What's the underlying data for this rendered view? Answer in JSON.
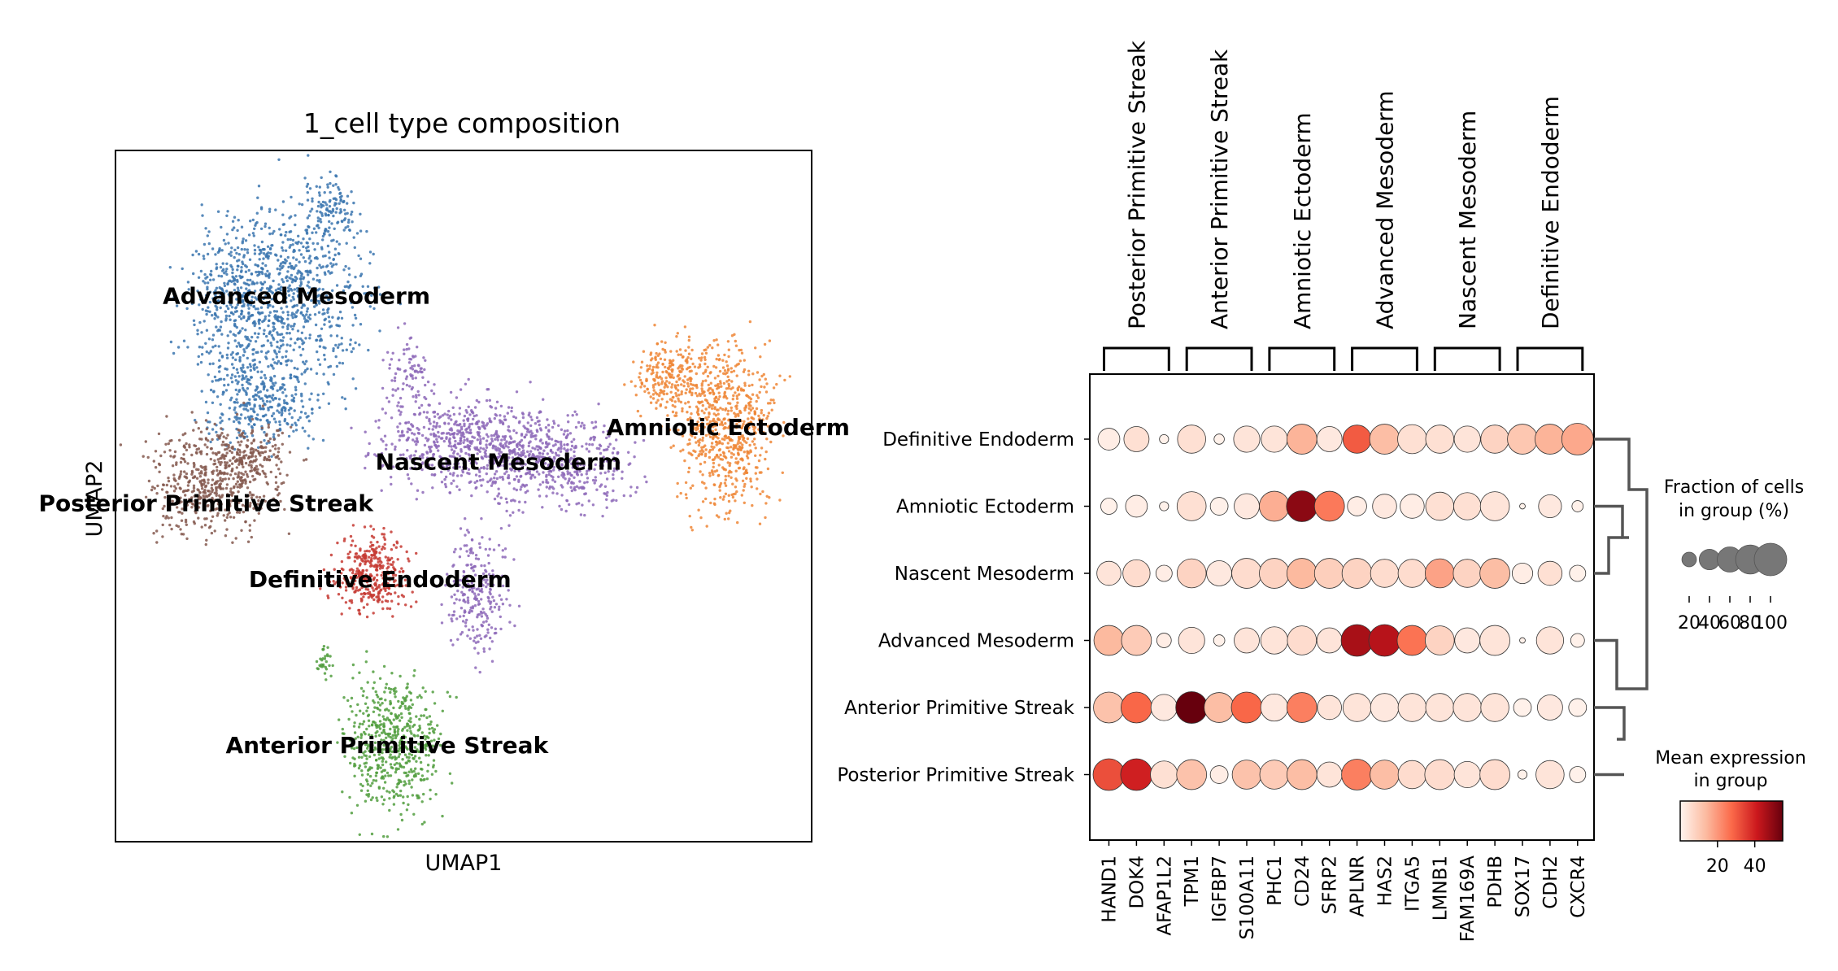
{
  "chart_data": [
    {
      "type": "scatter",
      "title": "1_cell type composition",
      "xlabel": "UMAP1",
      "ylabel": "UMAP2",
      "grid": false,
      "xlim": [
        0,
        100
      ],
      "ylim": [
        0,
        100
      ],
      "clusters": [
        {
          "name": "Advanced Mesoderm",
          "color": "#3b75af",
          "label": [
            26,
            79
          ],
          "blobs": [
            [
              18,
              78,
              7,
              10,
              500
            ],
            [
              27,
              80,
              9,
              12,
              550
            ],
            [
              21,
              64,
              8,
              6,
              350
            ],
            [
              31,
              92,
              3,
              4,
              100
            ]
          ]
        },
        {
          "name": "Nascent Mesoderm",
          "color": "#8d69b8",
          "label": [
            55,
            55
          ],
          "blobs": [
            [
              50,
              58,
              11,
              6,
              600
            ],
            [
              63,
              55,
              10,
              6,
              500
            ],
            [
              52,
              36,
              4,
              8,
              250
            ],
            [
              42,
              68,
              3,
              5,
              80
            ]
          ]
        },
        {
          "name": "Amniotic Ectoderm",
          "color": "#ef8636",
          "label": [
            88,
            60
          ],
          "blobs": [
            [
              88,
              60,
              6,
              11,
              650
            ],
            [
              80,
              67,
              5,
              5,
              250
            ]
          ]
        },
        {
          "name": "Posterior Primitive Streak",
          "color": "#84584e",
          "label": [
            13,
            49
          ],
          "blobs": [
            [
              14,
              52,
              8,
              7,
              500
            ],
            [
              20,
              56,
              5,
              4,
              150
            ]
          ]
        },
        {
          "name": "Definitive Endoderm",
          "color": "#c53a32",
          "label": [
            38,
            38
          ],
          "blobs": [
            [
              37,
              39,
              5,
              5,
              350
            ]
          ]
        },
        {
          "name": "Anterior Primitive Streak",
          "color": "#519e3e",
          "label": [
            39,
            14
          ],
          "blobs": [
            [
              40,
              14,
              6,
              9,
              550
            ],
            [
              30,
              26,
              1,
              2,
              30
            ]
          ]
        }
      ]
    },
    {
      "type": "dotplot",
      "groups": [
        "Definitive Endoderm",
        "Amniotic Ectoderm",
        "Nascent Mesoderm",
        "Advanced Mesoderm",
        "Anterior Primitive Streak",
        "Posterior Primitive Streak"
      ],
      "genes": [
        "HAND1",
        "DOK4",
        "AFAP1L2",
        "TPM1",
        "IGFBP7",
        "S100A11",
        "PHC1",
        "CD24",
        "SFRP2",
        "APLNR",
        "HAS2",
        "ITGA5",
        "LMNB1",
        "FAM169A",
        "PDHB",
        "SOX17",
        "CDH2",
        "CXCR4"
      ],
      "gene_groups": [
        {
          "label": "Posterior Primitive Streak",
          "start": 0,
          "end": 2
        },
        {
          "label": "Anterior Primitive Streak",
          "start": 3,
          "end": 5
        },
        {
          "label": "Amniotic Ectoderm",
          "start": 6,
          "end": 8
        },
        {
          "label": "Advanced Mesoderm",
          "start": 9,
          "end": 11
        },
        {
          "label": "Nascent Mesoderm",
          "start": 12,
          "end": 14
        },
        {
          "label": "Definitive Endoderm",
          "start": 15,
          "end": 17
        }
      ],
      "fraction": [
        [
          45,
          60,
          8,
          75,
          10,
          65,
          65,
          85,
          60,
          75,
          85,
          80,
          75,
          65,
          75,
          85,
          85,
          95
        ],
        [
          25,
          45,
          8,
          80,
          30,
          60,
          85,
          90,
          85,
          35,
          55,
          55,
          75,
          70,
          80,
          3,
          50,
          12
        ],
        [
          55,
          70,
          25,
          80,
          60,
          85,
          85,
          85,
          85,
          85,
          75,
          75,
          80,
          75,
          85,
          40,
          55,
          25
        ],
        [
          85,
          85,
          20,
          65,
          12,
          60,
          70,
          80,
          60,
          95,
          95,
          85,
          80,
          60,
          85,
          3,
          70,
          18
        ],
        [
          90,
          90,
          65,
          95,
          85,
          90,
          70,
          85,
          55,
          75,
          75,
          75,
          75,
          75,
          75,
          30,
          60,
          30
        ],
        [
          95,
          95,
          70,
          85,
          30,
          80,
          80,
          85,
          60,
          90,
          80,
          75,
          85,
          65,
          85,
          8,
          75,
          25
        ]
      ],
      "expression": [
        [
          2,
          5,
          1,
          5,
          1,
          4,
          4,
          15,
          3,
          30,
          13,
          5,
          5,
          4,
          8,
          11,
          15,
          17
        ],
        [
          1,
          2,
          1,
          5,
          1,
          3,
          16,
          50,
          25,
          2,
          3,
          2,
          5,
          5,
          4,
          1,
          3,
          1
        ],
        [
          4,
          6,
          2,
          8,
          3,
          6,
          8,
          14,
          9,
          8,
          6,
          6,
          18,
          8,
          13,
          2,
          5,
          1
        ],
        [
          14,
          10,
          2,
          4,
          1,
          4,
          4,
          6,
          4,
          46,
          44,
          26,
          8,
          3,
          4,
          1,
          4,
          1
        ],
        [
          12,
          28,
          3,
          55,
          13,
          28,
          3,
          24,
          4,
          4,
          3,
          4,
          4,
          4,
          4,
          1,
          3,
          1
        ],
        [
          32,
          40,
          5,
          12,
          2,
          12,
          10,
          13,
          4,
          24,
          13,
          6,
          6,
          4,
          6,
          1,
          4,
          1
        ]
      ],
      "dendrogram": "right",
      "size_legend": {
        "title": [
          "Fraction of cells",
          "in group (%)"
        ],
        "ticks": [
          "20",
          "40",
          "60",
          "80",
          "100"
        ],
        "values": [
          20,
          40,
          60,
          80,
          100
        ]
      },
      "color_legend": {
        "title": [
          "Mean expression",
          "in group"
        ],
        "ticks": [
          "20",
          "40"
        ],
        "values": [
          20,
          40
        ],
        "range": [
          0,
          55
        ],
        "colors": [
          "#fff5f0",
          "#fcbba1",
          "#fb6a4a",
          "#cb181d",
          "#67000d"
        ]
      }
    }
  ]
}
